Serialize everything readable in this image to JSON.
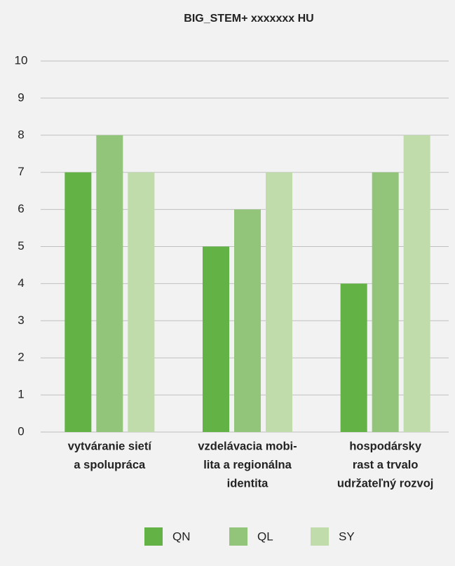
{
  "chart_data": {
    "type": "bar",
    "title": "BIG_STEM+ xxxxxxx HU",
    "categories": [
      [
        "vytváranie sietí",
        "a spolupráca"
      ],
      [
        "vzdelávacia mobi-",
        "lita a regionálna",
        "identita"
      ],
      [
        "hospodársky",
        "rast a trvalo",
        "udržateľný rozvoj"
      ]
    ],
    "series": [
      {
        "name": "QN",
        "color": "#62b246",
        "values": [
          7,
          5,
          4
        ]
      },
      {
        "name": "QL",
        "color": "#92c57a",
        "values": [
          8,
          6,
          7
        ]
      },
      {
        "name": "SY",
        "color": "#bfdcaa",
        "values": [
          7,
          7,
          8
        ]
      }
    ],
    "ylim": [
      0,
      10
    ],
    "yticks": [
      0,
      1,
      2,
      3,
      4,
      5,
      6,
      7,
      8,
      9,
      10
    ],
    "grid": true,
    "legend": "bottom"
  }
}
